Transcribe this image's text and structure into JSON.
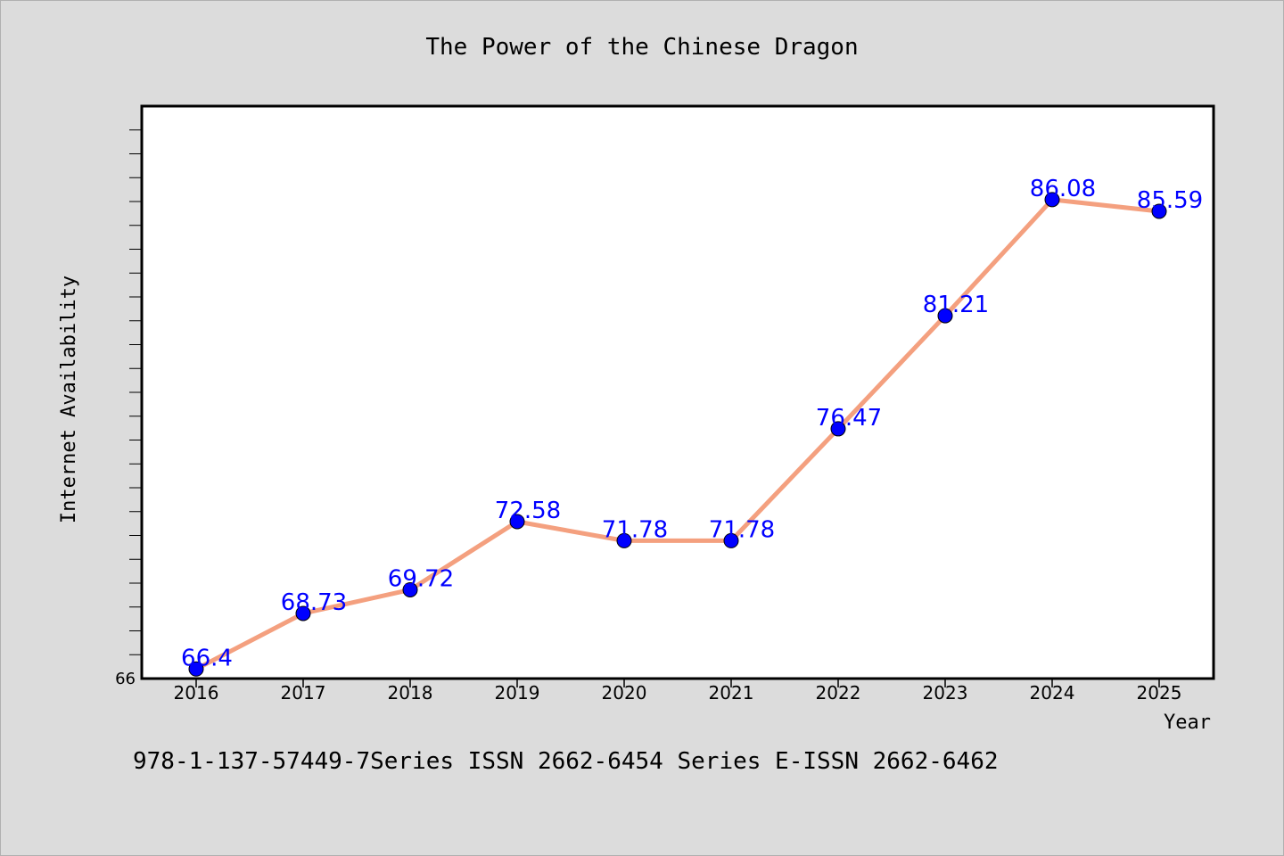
{
  "chart_data": {
    "type": "line",
    "title": "The Power of the Chinese Dragon",
    "xlabel": "Year",
    "ylabel": "Internet Availability",
    "footer": "978-1-137-57449-7Series ISSN 2662-6454 Series E-ISSN 2662-6462",
    "categories": [
      "2016",
      "2017",
      "2018",
      "2019",
      "2020",
      "2021",
      "2022",
      "2023",
      "2024",
      "2025"
    ],
    "series": [
      {
        "values": [
          66.4,
          68.73,
          69.72,
          72.58,
          71.78,
          71.78,
          76.47,
          81.21,
          86.08,
          85.59
        ],
        "labels": [
          "66.4",
          "68.73",
          "69.72",
          "72.58",
          "71.78",
          "71.78",
          "76.47",
          "81.21",
          "86.08",
          "85.59"
        ]
      }
    ],
    "ylim": [
      66,
      90
    ],
    "ytick_labels": [
      "66"
    ],
    "grid": false,
    "colors": {
      "line": "#f4a07f",
      "marker": "#0000ff",
      "data_label": "#0000ff",
      "plot_bg": "#ffffff",
      "page_bg": "#dcdcdc",
      "axis": "#000000"
    }
  }
}
